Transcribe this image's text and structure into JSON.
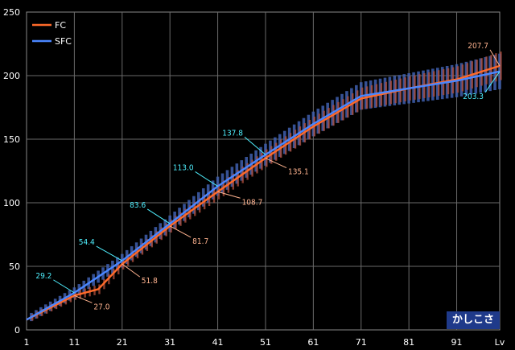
{
  "colors": {
    "fc": "#ff6a2a",
    "sfc": "#4a86ff",
    "fc_label": "#ffb38f",
    "sfc_label": "#4ff0ff",
    "badge_bg": "#1f3a8a"
  },
  "badge": "かしこさ",
  "chart_data": {
    "type": "line",
    "x_ticks": [
      "1",
      "11",
      "21",
      "31",
      "41",
      "51",
      "61",
      "71",
      "81",
      "91",
      "Lv"
    ],
    "y_ticks": [
      "0",
      "50",
      "100",
      "150",
      "200",
      "250"
    ],
    "xlim": [
      1,
      100
    ],
    "ylim": [
      0,
      250
    ],
    "grid": true,
    "legend": "top-left",
    "series": [
      {
        "name": "FC",
        "color": "#ff6a2a",
        "x": [
          1,
          11,
          16,
          21,
          31,
          41,
          51,
          61,
          71,
          81,
          91,
          100
        ],
        "y": [
          8,
          27.0,
          32,
          51.8,
          81.7,
          108.7,
          135.1,
          160,
          182,
          190,
          197,
          207.7
        ],
        "labels": [
          {
            "x": 11,
            "y": 27.0,
            "text": "27.0"
          },
          {
            "x": 21,
            "y": 51.8,
            "text": "51.8"
          },
          {
            "x": 31,
            "y": 81.7,
            "text": "81.7"
          },
          {
            "x": 41,
            "y": 108.7,
            "text": "108.7"
          },
          {
            "x": 51,
            "y": 135.1,
            "text": "135.1"
          },
          {
            "x": 100,
            "y": 207.7,
            "text": "207.7"
          }
        ]
      },
      {
        "name": "SFC",
        "color": "#4a86ff",
        "x": [
          1,
          11,
          21,
          31,
          41,
          51,
          61,
          71,
          81,
          91,
          100
        ],
        "y": [
          8,
          29.2,
          54.4,
          83.6,
          113.0,
          137.8,
          162,
          184,
          190,
          196,
          203.3
        ],
        "labels": [
          {
            "x": 11,
            "y": 29.2,
            "text": "29.2"
          },
          {
            "x": 21,
            "y": 54.4,
            "text": "54.4"
          },
          {
            "x": 31,
            "y": 83.6,
            "text": "83.6"
          },
          {
            "x": 41,
            "y": 113.0,
            "text": "113.0"
          },
          {
            "x": 51,
            "y": 137.8,
            "text": "137.8"
          },
          {
            "x": 100,
            "y": 203.3,
            "text": "203.3"
          }
        ]
      }
    ]
  }
}
